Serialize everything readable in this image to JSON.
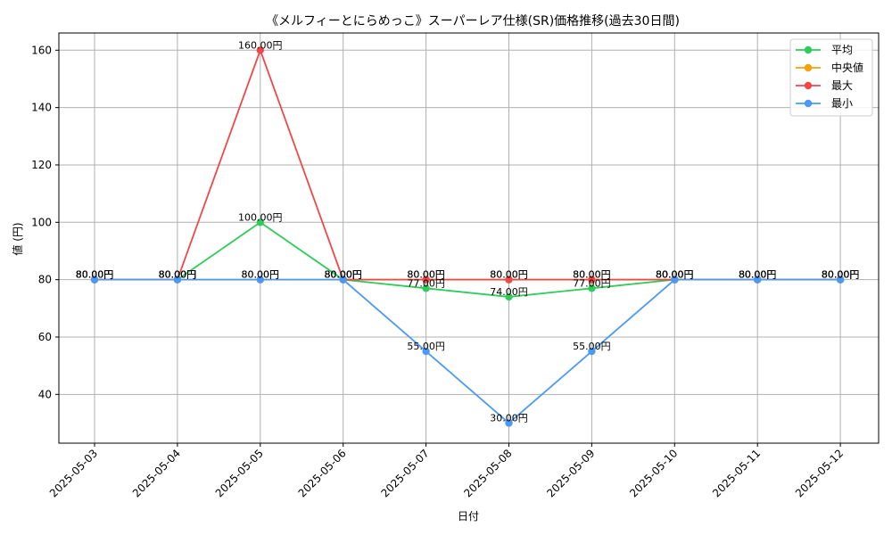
{
  "chart_data": {
    "type": "line",
    "title": "《メルフィーとにらめっこ》スーパーレア仕様(SR)価格推移(過去30日間)",
    "xlabel": "日付",
    "ylabel": "値 (円)",
    "categories": [
      "2025-05-03",
      "2025-05-04",
      "2025-05-05",
      "2025-05-06",
      "2025-05-07",
      "2025-05-08",
      "2025-05-09",
      "2025-05-10",
      "2025-05-11",
      "2025-05-12"
    ],
    "ylim": [
      23,
      166
    ],
    "yticks": [
      40,
      60,
      80,
      100,
      120,
      140,
      160
    ],
    "grid": true,
    "legend_position": "top-right",
    "value_suffix": "円",
    "series": [
      {
        "name": "平均",
        "color": "#2ecc5a",
        "values": [
          80,
          80,
          100,
          80,
          77,
          74,
          77,
          80,
          80,
          80
        ]
      },
      {
        "name": "中央値",
        "color": "#f5a10a",
        "values": [
          80,
          80,
          80,
          80,
          80,
          80,
          80,
          80,
          80,
          80
        ]
      },
      {
        "name": "最大",
        "color": "#f04848",
        "values": [
          80,
          80,
          160,
          80,
          80,
          80,
          80,
          80,
          80,
          80
        ]
      },
      {
        "name": "最小",
        "color": "#4a9af5",
        "values": [
          80,
          80,
          80,
          80,
          55,
          30,
          55,
          80,
          80,
          80
        ]
      }
    ]
  }
}
